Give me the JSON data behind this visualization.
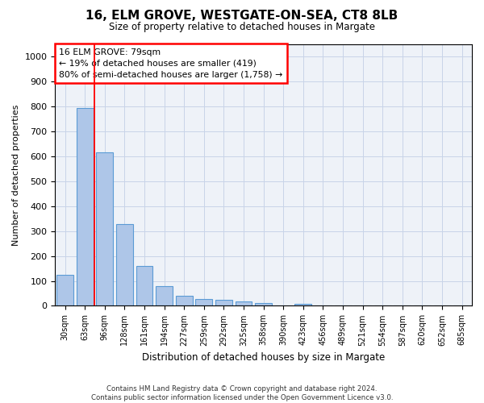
{
  "title": "16, ELM GROVE, WESTGATE-ON-SEA, CT8 8LB",
  "subtitle": "Size of property relative to detached houses in Margate",
  "xlabel": "Distribution of detached houses by size in Margate",
  "ylabel": "Number of detached properties",
  "bar_values": [
    125,
    795,
    615,
    328,
    160,
    78,
    40,
    27,
    24,
    17,
    10,
    0,
    8,
    0,
    0,
    0,
    0,
    0,
    0,
    0,
    0
  ],
  "categories": [
    "30sqm",
    "63sqm",
    "96sqm",
    "128sqm",
    "161sqm",
    "194sqm",
    "227sqm",
    "259sqm",
    "292sqm",
    "325sqm",
    "358sqm",
    "390sqm",
    "423sqm",
    "456sqm",
    "489sqm",
    "521sqm",
    "554sqm",
    "587sqm",
    "620sqm",
    "652sqm",
    "685sqm"
  ],
  "bar_color": "#aec6e8",
  "bar_edge_color": "#5b9bd5",
  "grid_color": "#d0d8e8",
  "background_color": "#eef2f8",
  "red_line_x": 1.5,
  "ylim": [
    0,
    1050
  ],
  "yticks": [
    0,
    100,
    200,
    300,
    400,
    500,
    600,
    700,
    800,
    900,
    1000
  ],
  "annotation_title": "16 ELM GROVE: 79sqm",
  "annotation_line1": "← 19% of detached houses are smaller (419)",
  "annotation_line2": "80% of semi-detached houses are larger (1,758) →",
  "footer_line1": "Contains HM Land Registry data © Crown copyright and database right 2024.",
  "footer_line2": "Contains public sector information licensed under the Open Government Licence v3.0."
}
